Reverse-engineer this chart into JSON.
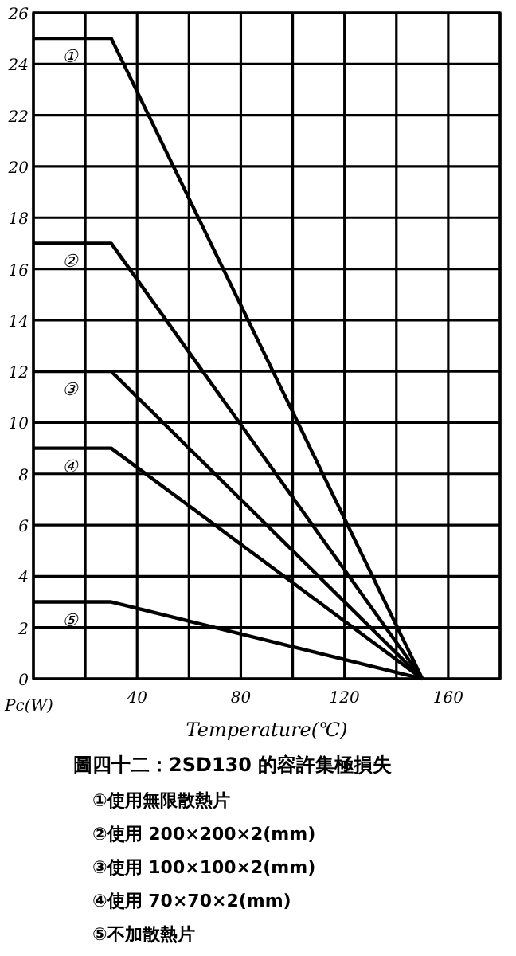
{
  "chart_data": {
    "type": "line",
    "title": "圖四十二：2SD130 的容許集極損失",
    "xlabel": "Temperature(℃)",
    "ylabel": "Pc(W)",
    "x": [
      0,
      30,
      150
    ],
    "series": [
      {
        "name": "①",
        "color": "#000000",
        "values": [
          25,
          25,
          0
        ]
      },
      {
        "name": "②",
        "color": "#000000",
        "values": [
          17,
          17,
          0
        ]
      },
      {
        "name": "③",
        "color": "#000000",
        "values": [
          12,
          12,
          0
        ]
      },
      {
        "name": "④",
        "color": "#000000",
        "values": [
          9,
          9,
          0
        ]
      },
      {
        "name": "⑤",
        "color": "#000000",
        "values": [
          3,
          3,
          0
        ]
      }
    ],
    "xlim": [
      0,
      180
    ],
    "xticks": [
      {
        "value": 0,
        "label": null
      },
      {
        "value": 20,
        "label": null
      },
      40,
      {
        "value": 60,
        "label": null
      },
      80,
      {
        "value": 100,
        "label": null
      },
      120,
      {
        "value": 140,
        "label": null
      },
      160,
      {
        "value": 180,
        "label": null
      }
    ],
    "ylim": [
      0,
      26
    ],
    "yticks": [
      0,
      2,
      4,
      6,
      8,
      10,
      12,
      14,
      16,
      18,
      20,
      22,
      24,
      26
    ],
    "grid": true,
    "marker": "none",
    "line_style": "solid",
    "annotations": [
      "①使用無限散熱片",
      "②使用 200×200×2(mm)",
      "③使用 100×100×2(mm)",
      "④使用 70×70×2(mm)",
      "⑤不加散熱片"
    ]
  }
}
